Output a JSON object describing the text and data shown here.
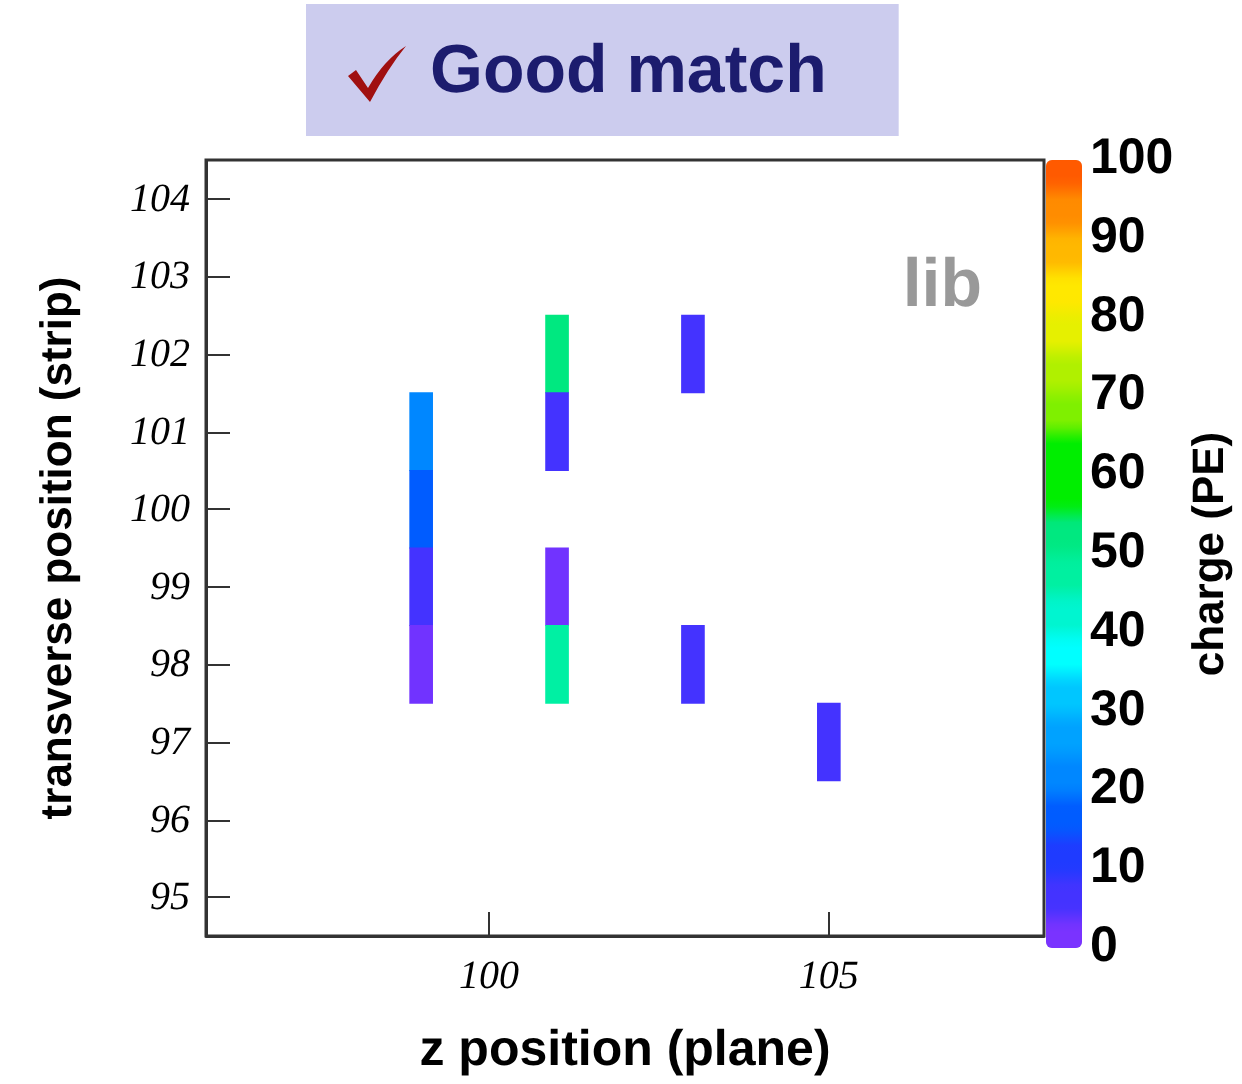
{
  "chart_data": {
    "type": "heatmap",
    "title": "Good match",
    "xlabel": "z position (plane)",
    "ylabel": "transverse position (strip)",
    "clabel": "charge (PE)",
    "annotations": [
      "lib"
    ],
    "categories": [
      null,
      null,
      null,
      null,
      null,
      null,
      null,
      null,
      null,
      null,
      null,
      null,
      "100",
      null,
      null,
      null,
      null,
      null,
      null,
      null,
      null,
      null,
      null,
      null,
      null,
      null,
      null,
      "105",
      null,
      null,
      null,
      null,
      null,
      null,
      null,
      null,
      null
    ],
    "y_categories": [
      "104",
      "103",
      "102",
      "101",
      "100",
      "99",
      "98",
      "97",
      "96",
      "95"
    ],
    "cells": [
      [
        null,
        null,
        null,
        null,
        null,
        null,
        null,
        null,
        null,
        null,
        null,
        null,
        null,
        null,
        null,
        null,
        null,
        null,
        null,
        null,
        null,
        null,
        null,
        null,
        null,
        null,
        null,
        null,
        null,
        null,
        null,
        null,
        null,
        null,
        null,
        null,
        null
      ],
      [
        null,
        null,
        null,
        null,
        null,
        null,
        null,
        null,
        null,
        null,
        null,
        null,
        null,
        null,
        null,
        null,
        null,
        null,
        null,
        null,
        null,
        null,
        null,
        null,
        null,
        null,
        null,
        null,
        null,
        null,
        null,
        null,
        null,
        null,
        null,
        null,
        null
      ],
      [
        null,
        null,
        null,
        null,
        null,
        null,
        null,
        null,
        null,
        null,
        null,
        null,
        null,
        null,
        null,
        52,
        null,
        null,
        null,
        null,
        null,
        7,
        null,
        null,
        null,
        null,
        null,
        null,
        null,
        null,
        null,
        null,
        null,
        null,
        null,
        null,
        null
      ],
      [
        null,
        null,
        null,
        null,
        null,
        null,
        null,
        null,
        null,
        22,
        null,
        null,
        null,
        null,
        null,
        7,
        null,
        null,
        null,
        null,
        null,
        null,
        null,
        null,
        null,
        null,
        null,
        null,
        null,
        null,
        null,
        null,
        null,
        null,
        null,
        null,
        null
      ],
      [
        null,
        null,
        null,
        null,
        null,
        null,
        null,
        null,
        null,
        17,
        null,
        null,
        null,
        null,
        null,
        null,
        null,
        null,
        null,
        null,
        null,
        null,
        null,
        null,
        null,
        null,
        null,
        null,
        null,
        null,
        null,
        null,
        null,
        null,
        null,
        null,
        null
      ],
      [
        null,
        null,
        null,
        null,
        null,
        null,
        null,
        null,
        null,
        7,
        null,
        null,
        null,
        null,
        null,
        3,
        null,
        null,
        null,
        null,
        null,
        null,
        null,
        null,
        null,
        null,
        null,
        null,
        null,
        null,
        null,
        null,
        null,
        null,
        null,
        null,
        null
      ],
      [
        null,
        null,
        null,
        null,
        null,
        null,
        null,
        null,
        null,
        3,
        null,
        null,
        null,
        null,
        null,
        46,
        null,
        null,
        null,
        null,
        null,
        7,
        null,
        null,
        null,
        null,
        null,
        null,
        null,
        null,
        null,
        null,
        null,
        null,
        null,
        null,
        null
      ],
      [
        null,
        null,
        null,
        null,
        null,
        null,
        null,
        null,
        null,
        null,
        null,
        null,
        null,
        null,
        null,
        null,
        null,
        null,
        null,
        null,
        null,
        null,
        null,
        null,
        null,
        null,
        null,
        7,
        null,
        null,
        null,
        null,
        null,
        null,
        null,
        null,
        null
      ],
      [
        null,
        null,
        null,
        null,
        null,
        null,
        null,
        null,
        null,
        null,
        null,
        null,
        null,
        null,
        null,
        null,
        null,
        null,
        null,
        null,
        null,
        null,
        null,
        null,
        null,
        null,
        null,
        null,
        null,
        null,
        null,
        null,
        null,
        null,
        null,
        null,
        null
      ],
      [
        null,
        null,
        null,
        null,
        null,
        null,
        null,
        null,
        null,
        null,
        null,
        null,
        null,
        null,
        null,
        null,
        null,
        null,
        null,
        null,
        null,
        null,
        null,
        null,
        null,
        null,
        null,
        null,
        null,
        null,
        null,
        null,
        null,
        null,
        null,
        null,
        null
      ]
    ],
    "clim": [
      0,
      100
    ],
    "cticks": [
      0,
      10,
      20,
      30,
      40,
      50,
      60,
      70,
      80,
      90,
      100
    ],
    "grid": false
  }
}
